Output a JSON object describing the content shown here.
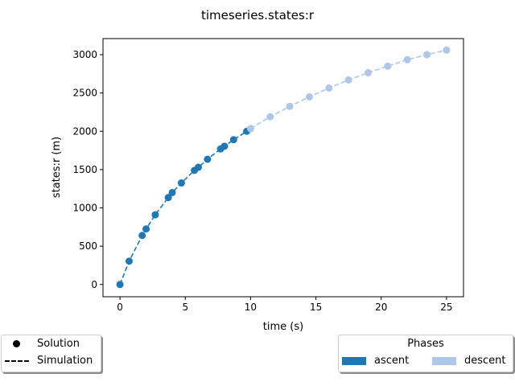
{
  "chart_data": {
    "type": "line",
    "title": "timeseries.states:r",
    "xlabel": "time (s)",
    "ylabel": "states:r (m)",
    "xlim": [
      -1.3,
      26.3
    ],
    "ylim": [
      -160,
      3210
    ],
    "xticks": [
      0,
      5,
      10,
      15,
      20,
      25
    ],
    "yticks": [
      0,
      500,
      1000,
      1500,
      2000,
      2500,
      3000
    ],
    "grid": false,
    "series": [
      {
        "name": "ascent",
        "color": "#1f77b4",
        "x": [
          0,
          0.7,
          1.7,
          2.0,
          2.7,
          3.7,
          4.0,
          4.7,
          5.7,
          6.0,
          6.7,
          7.7,
          8.0,
          8.7,
          9.7
        ],
        "y": [
          0,
          305,
          640,
          725,
          910,
          1135,
          1200,
          1325,
          1490,
          1530,
          1635,
          1770,
          1805,
          1890,
          2000
        ]
      },
      {
        "name": "descent",
        "color": "#aec7e8",
        "x": [
          10.0,
          11.5,
          13.0,
          14.5,
          16.0,
          17.5,
          19.0,
          20.5,
          22.0,
          23.5,
          25.0
        ],
        "y": [
          2035,
          2190,
          2325,
          2450,
          2565,
          2670,
          2765,
          2850,
          2935,
          3000,
          3060
        ]
      }
    ],
    "legend_styles": {
      "placement": "lower-left",
      "entries": [
        {
          "label": "Solution",
          "marker": "dot"
        },
        {
          "label": "Simulation",
          "marker": "dashed-line"
        }
      ]
    },
    "legend_phases": {
      "placement": "lower-right",
      "title": "Phases",
      "entries": [
        {
          "label": "ascent",
          "color": "#1f77b4"
        },
        {
          "label": "descent",
          "color": "#aec7e8"
        }
      ]
    }
  }
}
